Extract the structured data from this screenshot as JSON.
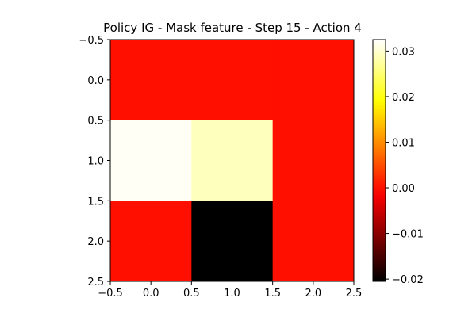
{
  "chart_data": {
    "type": "heatmap",
    "title": "Policy IG - Mask feature - Step 15 - Action 4",
    "colormap": "hot",
    "rows": 3,
    "cols": 3,
    "x_ticks": [
      "−0.5",
      "0.0",
      "0.5",
      "1.0",
      "1.5",
      "2.0",
      "2.5"
    ],
    "y_ticks": [
      "−0.5",
      "0.0",
      "0.5",
      "1.0",
      "1.5",
      "2.0",
      "2.5"
    ],
    "x_tick_values": [
      -0.5,
      0.0,
      0.5,
      1.0,
      1.5,
      2.0,
      2.5
    ],
    "y_tick_values": [
      -0.5,
      0.0,
      0.5,
      1.0,
      1.5,
      2.0,
      2.5
    ],
    "xlim": [
      -0.5,
      2.5
    ],
    "ylim": [
      2.5,
      -0.5
    ],
    "values": [
      [
        0.0,
        0.0,
        0.0
      ],
      [
        0.032,
        0.029,
        0.0
      ],
      [
        0.0,
        -0.0205,
        0.0
      ]
    ],
    "colorbar": {
      "vmin": -0.0205,
      "vmax": 0.0325,
      "tick_values": [
        -0.02,
        -0.01,
        0.0,
        0.01,
        0.02,
        0.03
      ],
      "tick_labels": [
        "−0.02",
        "−0.01",
        "0.00",
        "0.01",
        "0.02",
        "0.03"
      ]
    },
    "xlabel": "",
    "ylabel": ""
  }
}
